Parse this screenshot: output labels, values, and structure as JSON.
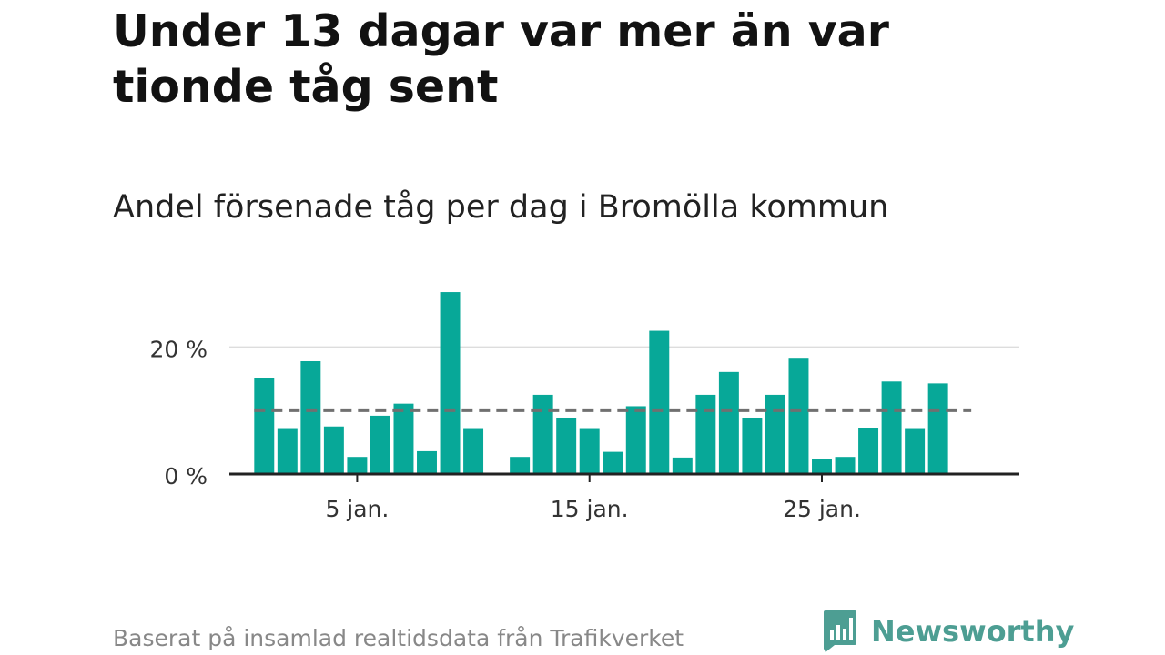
{
  "title": "Under 13 dagar var mer än var tionde tåg sent",
  "subtitle": "Andel försenade tåg per dag i Bromölla kommun",
  "source": "Baserat på insamlad realtidsdata från Trafikverket",
  "brand": {
    "name": "Newsworthy",
    "color": "#4d9e93",
    "icon": "newsworthy-logo-icon"
  },
  "colors": {
    "bar": "#07a898",
    "reference": "#707070",
    "gridline": "#dddddd",
    "axis": "#222222"
  },
  "chart_data": {
    "type": "bar",
    "x": [
      1,
      2,
      3,
      4,
      5,
      6,
      7,
      8,
      9,
      10,
      11,
      12,
      13,
      14,
      15,
      16,
      17,
      18,
      19,
      20,
      21,
      22,
      23,
      24,
      25,
      26,
      27,
      28,
      29,
      30,
      31
    ],
    "values": [
      15.1,
      7.1,
      17.8,
      7.5,
      2.7,
      9.2,
      11.1,
      3.6,
      28.7,
      7.1,
      null,
      2.7,
      12.5,
      8.9,
      7.1,
      3.5,
      10.7,
      22.6,
      2.6,
      12.5,
      16.1,
      8.9,
      12.5,
      18.2,
      2.4,
      2.7,
      7.2,
      14.6,
      7.1,
      14.3,
      null
    ],
    "reference_line": 10,
    "ylim": [
      0,
      30
    ],
    "xlim": [
      -0.5,
      33.5
    ],
    "yticks": [
      0,
      20
    ],
    "ytick_labels": [
      "0 %",
      "20 %"
    ],
    "xticks": [
      5,
      15,
      25
    ],
    "xtick_labels": [
      "5 jan.",
      "15 jan.",
      "25 jan."
    ],
    "xlabel": "",
    "ylabel": "",
    "grid": true
  }
}
